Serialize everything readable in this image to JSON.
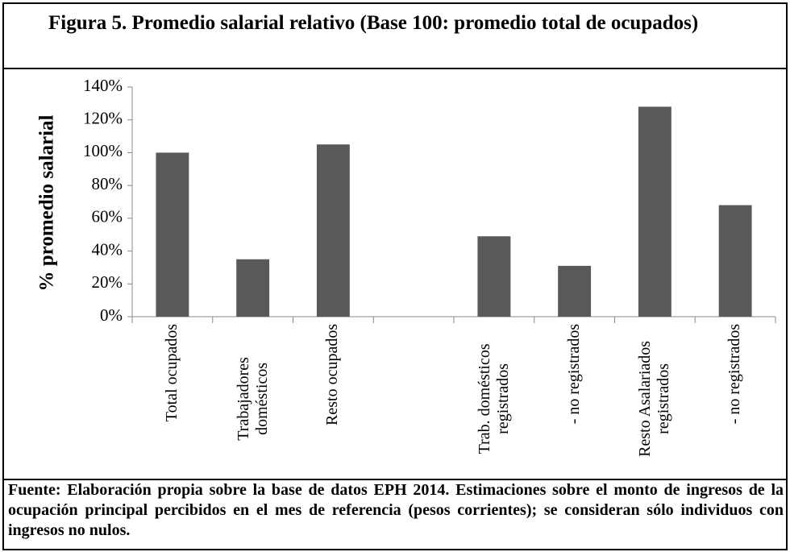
{
  "chart_data": {
    "type": "bar",
    "title": "Figura 5. Promedio salarial relativo (Base 100: promedio total de ocupados)",
    "y_label": "% promedio salarial",
    "categories": [
      "Total ocupados",
      "Trabajadores domésticos",
      "Resto ocupados",
      null,
      "Trab. domésticos registrados",
      "- no registrados",
      "Resto Asalariados registrados",
      "- no registrados"
    ],
    "values": [
      100,
      35,
      105,
      null,
      49,
      31,
      128,
      68
    ],
    "color": "#595959",
    "ylim": [
      0,
      140
    ],
    "yticks": [
      {
        "value": 0,
        "label": "0%"
      },
      {
        "value": 20,
        "label": "20%"
      },
      {
        "value": 40,
        "label": "40%"
      },
      {
        "value": 60,
        "label": "60%"
      },
      {
        "value": 80,
        "label": "80%"
      },
      {
        "value": 100,
        "label": "100%"
      },
      {
        "value": 120,
        "label": "120%"
      },
      {
        "value": 140,
        "label": "140%"
      }
    ],
    "grid": false,
    "source": "Fuente: Elaboración propia sobre la base de datos EPH 2014. Estimaciones sobre el monto de ingresos de la ocupación principal percibidos en el mes de referencia (pesos corrientes); se consideran sólo individuos con ingresos no nulos."
  }
}
